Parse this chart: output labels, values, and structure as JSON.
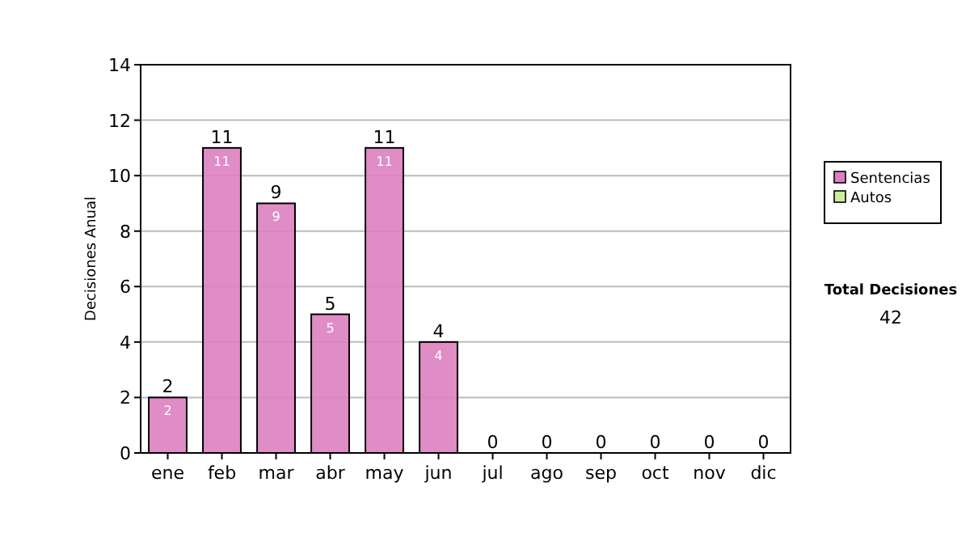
{
  "chart_data": {
    "type": "bar",
    "stacked": true,
    "ylabel": "Decisiones Anual",
    "categories": [
      "ene",
      "feb",
      "mar",
      "abr",
      "may",
      "jun",
      "jul",
      "ago",
      "sep",
      "oct",
      "nov",
      "dic"
    ],
    "series": [
      {
        "name": "Sentencias",
        "color": "#dd7fc0",
        "values": [
          2,
          11,
          9,
          5,
          11,
          4,
          0,
          0,
          0,
          0,
          0,
          0
        ],
        "value_labels": [
          "2",
          "11",
          "9",
          "5",
          "11",
          "4",
          null,
          null,
          null,
          null,
          null,
          null
        ]
      },
      {
        "name": "Autos",
        "color": "#ccee99",
        "values": [
          0,
          0,
          0,
          0,
          0,
          0,
          0,
          0,
          0,
          0,
          0,
          0
        ]
      }
    ],
    "totals": [
      "2",
      "11",
      "9",
      "5",
      "11",
      "4",
      "0",
      "0",
      "0",
      "0",
      "0",
      "0"
    ],
    "ylim": [
      0,
      14
    ],
    "yticks": [
      0,
      2,
      4,
      6,
      8,
      10,
      12,
      14
    ],
    "grid": "y",
    "legend": "right",
    "annotations": [
      "Total Decisiones",
      "42"
    ]
  }
}
